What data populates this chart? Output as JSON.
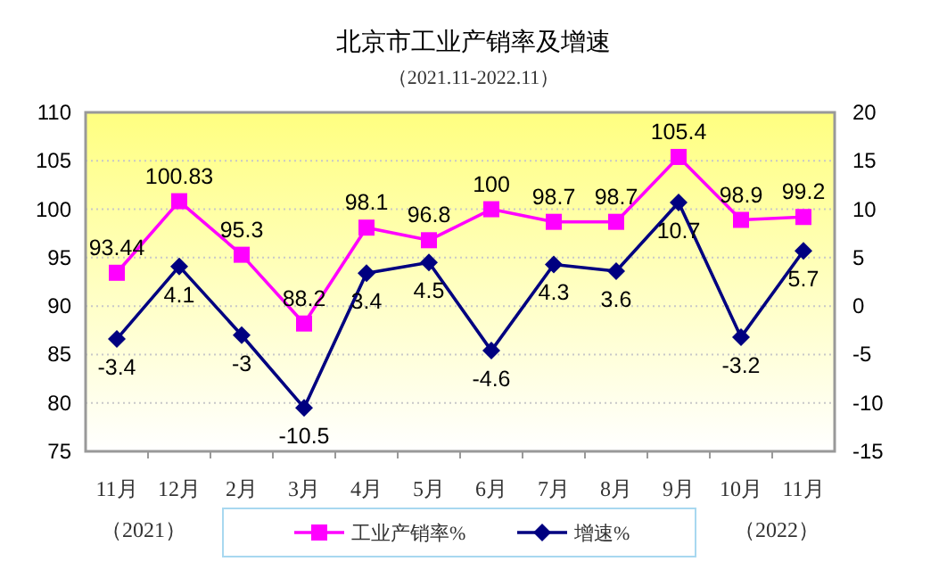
{
  "chart_data": {
    "type": "line",
    "title": "北京市工业产销率及增速",
    "subtitle": "（2021.11-2022.11）",
    "categories": [
      "11月",
      "12月",
      "2月",
      "3月",
      "4月",
      "5月",
      "6月",
      "7月",
      "8月",
      "9月",
      "10月",
      "11月"
    ],
    "series": [
      {
        "name": "工业产销率%",
        "color": "#ff00ff",
        "marker": "square",
        "values": [
          93.44,
          100.83,
          95.3,
          88.2,
          98.1,
          96.8,
          100,
          98.7,
          98.7,
          105.4,
          98.9,
          99.2
        ]
      },
      {
        "name": "增速%",
        "color": "#000080",
        "marker": "diamond",
        "axis": "y2",
        "values": [
          -3.4,
          4.1,
          -3,
          -10.5,
          3.4,
          4.5,
          -4.6,
          4.3,
          3.6,
          10.7,
          -3.2,
          5.7
        ]
      }
    ],
    "ylim": [
      75,
      110
    ],
    "yticks": [
      75,
      80,
      85,
      90,
      95,
      100,
      105,
      110
    ],
    "y2lim": [
      -15,
      20
    ],
    "y2ticks": [
      -15,
      -10,
      -5,
      0,
      5,
      10,
      15,
      20
    ],
    "annotations": [
      "（2021）",
      "（2022）"
    ],
    "data_labels": true,
    "grid": "y",
    "legend": "bottom"
  }
}
